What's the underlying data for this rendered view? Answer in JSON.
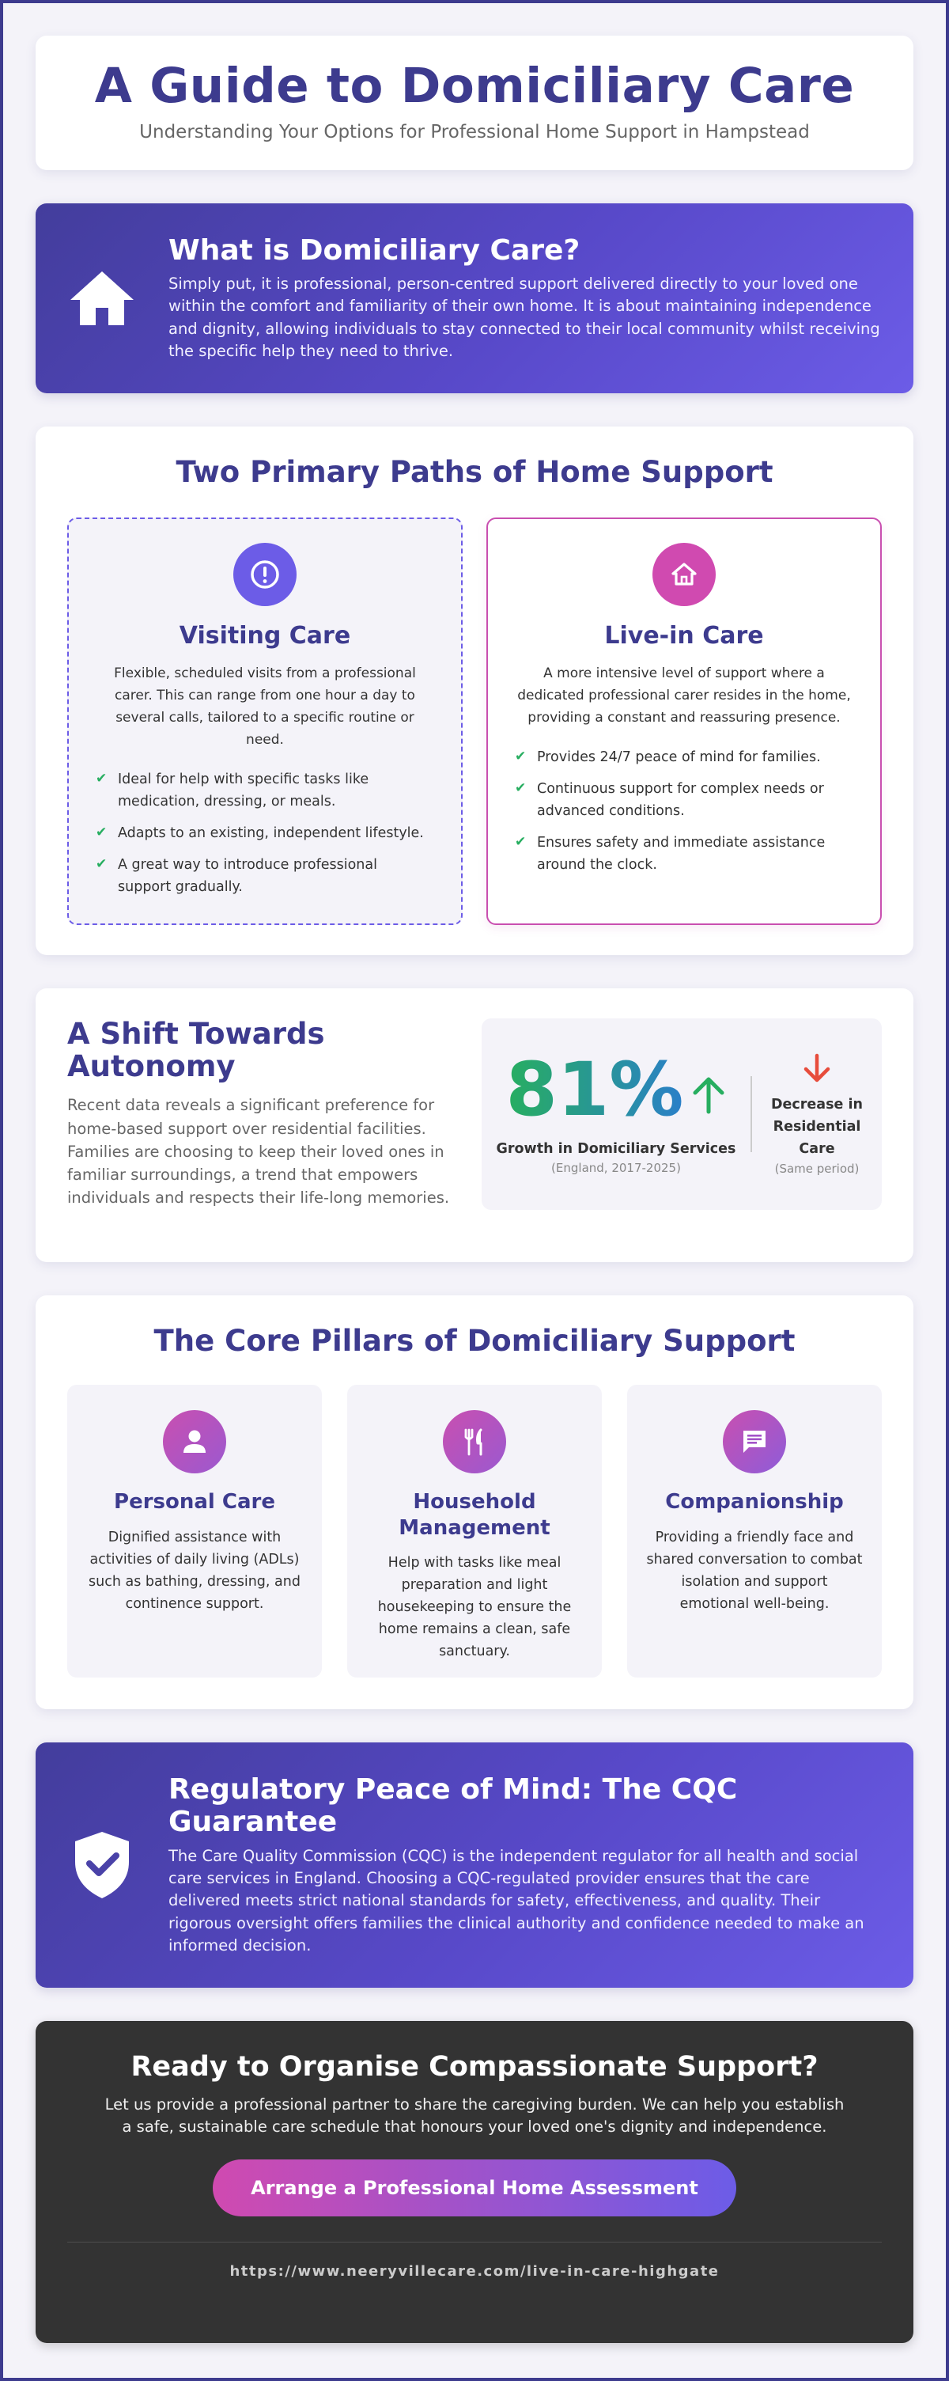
{
  "header": {
    "title": "A Guide to Domiciliary Care",
    "subtitle": "Understanding Your Options for Professional Home Support in Hampstead"
  },
  "intro": {
    "icon": "home-icon",
    "title": "What is Domiciliary Care?",
    "text": "Simply put, it is professional, person-centred support delivered directly to your loved one within the comfort and familiarity of their own home. It is about maintaining independence and dignity, allowing individuals to stay connected to their local community whilst receiving the specific help they need to thrive."
  },
  "paths": {
    "title": "Two Primary Paths of Home Support",
    "visiting": {
      "icon": "alert-circle-icon",
      "title": "Visiting Care",
      "description": "Flexible, scheduled visits from a professional carer. This can range from one hour a day to several calls, tailored to a specific routine or need.",
      "bullets": [
        "Ideal for help with specific tasks like medication, dressing, or meals.",
        "Adapts to an existing, independent lifestyle.",
        "A great way to introduce professional support gradually."
      ]
    },
    "livein": {
      "icon": "home-outline-icon",
      "title": "Live-in Care",
      "description": "A more intensive level of support where a dedicated professional carer resides in the home, providing a constant and reassuring presence.",
      "bullets": [
        "Provides 24/7 peace of mind for families.",
        "Continuous support for complex needs or advanced conditions.",
        "Ensures safety and immediate assistance around the clock."
      ]
    }
  },
  "autonomy": {
    "title": "A Shift Towards Autonomy",
    "text": "Recent data reveals a significant preference for home-based support over residential facilities. Families are choosing to keep their loved ones in familiar surroundings, a trend that empowers individuals and respects their life-long memories.",
    "stat1": {
      "value": "81%",
      "label": "Growth in Domiciliary Services",
      "sub": "(England, 2017-2025)",
      "color": "#27ae60"
    },
    "stat2": {
      "label": "Decrease in Residential Care",
      "sub": "(Same period)",
      "color": "#e74c3c"
    }
  },
  "pillars": {
    "title": "The Core Pillars of Domiciliary Support",
    "items": [
      {
        "icon": "person-icon",
        "title": "Personal Care",
        "text": "Dignified assistance with activities of daily living (ADLs) such as bathing, dressing, and continence support."
      },
      {
        "icon": "fork-knife-icon",
        "title": "Household Management",
        "text": "Help with tasks like meal preparation and light housekeeping to ensure the home remains a clean, safe sanctuary."
      },
      {
        "icon": "chat-icon",
        "title": "Companionship",
        "text": "Providing a friendly face and shared conversation to combat isolation and support emotional well-being."
      }
    ]
  },
  "cqc": {
    "icon": "shield-check-icon",
    "title": "Regulatory Peace of Mind: The CQC Guarantee",
    "text": "The Care Quality Commission (CQC) is the independent regulator for all health and social care services in England. Choosing a CQC-regulated provider ensures that the care delivered meets strict national standards for safety, effectiveness, and quality. Their rigorous oversight offers families the clinical authority and confidence needed to make an informed decision."
  },
  "cta": {
    "title": "Ready to Organise Compassionate Support?",
    "text": "Let us provide a professional partner to share the caregiving burden. We can help you establish a safe, sustainable care schedule that honours your loved one's dignity and independence.",
    "button": "Arrange a Professional Home Assessment",
    "url": "https://www.neeryvillecare.com/live-in-care-highgate"
  },
  "colors": {
    "primary": "#3d3b8e",
    "accent": "#6c5ce7",
    "pink": "#d04ab0",
    "check": "#27ae60",
    "dark": "#333333"
  }
}
